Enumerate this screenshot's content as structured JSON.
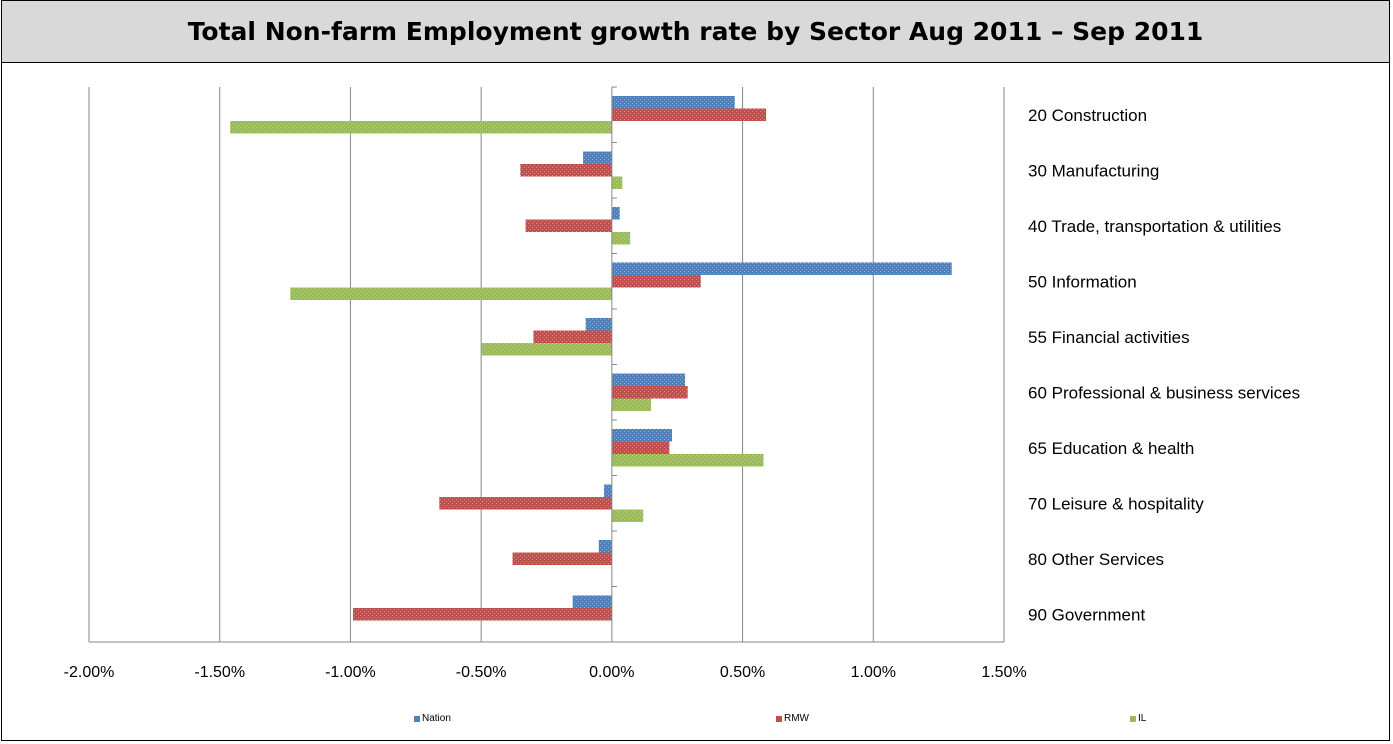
{
  "colors": {
    "nation": "#4f81bd",
    "rmw": "#c0504d",
    "il": "#9bbb59",
    "grid": "#868686"
  },
  "chart_data": {
    "type": "bar",
    "orientation": "horizontal",
    "title": "Total Non-farm Employment growth rate by Sector Aug 2011 – Sep 2011",
    "categories": [
      "20 Construction",
      "30 Manufacturing",
      "40 Trade, transportation & utilities",
      "50 Information",
      "55 Financial activities",
      "60 Professional & business services",
      "65 Education & health",
      "70 Leisure & hospitality",
      "80 Other Services",
      "90 Government"
    ],
    "series": [
      {
        "name": "Nation",
        "values": [
          0.47,
          -0.11,
          0.03,
          1.3,
          -0.1,
          0.28,
          0.23,
          -0.03,
          -0.05,
          -0.15
        ]
      },
      {
        "name": "RMW",
        "values": [
          0.59,
          -0.35,
          -0.33,
          0.34,
          -0.3,
          0.29,
          0.22,
          -0.66,
          -0.38,
          -0.99
        ]
      },
      {
        "name": "IL",
        "values": [
          -1.46,
          0.04,
          0.07,
          -1.23,
          -0.5,
          0.15,
          0.58,
          0.12,
          0.0,
          0.0
        ]
      }
    ],
    "xlim": [
      -2.0,
      1.5
    ],
    "x_ticks": [
      "-2.00%",
      "-1.50%",
      "-1.00%",
      "-0.50%",
      "0.00%",
      "0.50%",
      "1.00%",
      "1.50%"
    ],
    "grid": true,
    "legend_position": "bottom"
  }
}
